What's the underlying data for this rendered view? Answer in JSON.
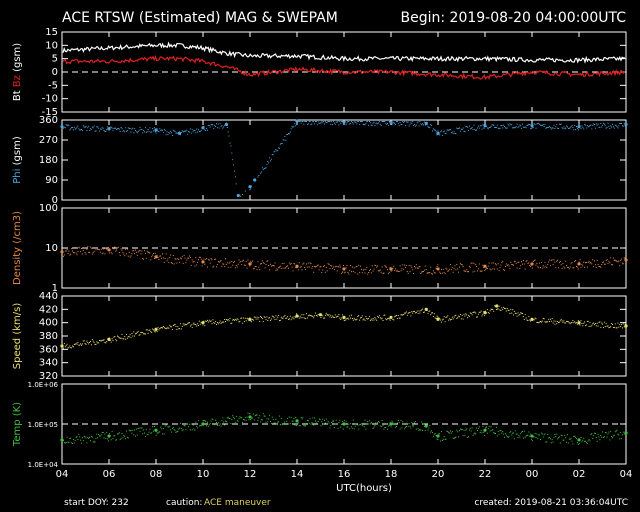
{
  "header": {
    "title": "ACE RTSW (Estimated) MAG & SWEPAM",
    "begin": "Begin: 2019-08-20 04:00:00UTC"
  },
  "footer": {
    "start_doy_label": "start DOY: 232",
    "caution_label": "caution:",
    "caution_value": "ACE maneuver",
    "created": "created: 2019-08-21 03:36:04UTC"
  },
  "colors": {
    "background": "#000000",
    "axes": "#ffffff",
    "bt": "#ffffff",
    "bz": "#e02020",
    "phi": "#4aa6e0",
    "density": "#e08a4a",
    "speed": "#e8e070",
    "temp": "#40c040"
  },
  "chart_data": [
    {
      "type": "line",
      "panel": "magnetic field",
      "ylabel_parts": [
        "Bt",
        "Bz",
        "(gsm)"
      ],
      "ylim": [
        -15,
        15
      ],
      "yticks": [
        "15",
        "10",
        "5",
        "0",
        "-5",
        "-10",
        "-15"
      ],
      "ytick_values": [
        15,
        10,
        5,
        0,
        -5,
        -10,
        -15
      ],
      "reference_line": 0,
      "x_hours": [
        4,
        6,
        8,
        9,
        10,
        11,
        12,
        14,
        16,
        18,
        20,
        22,
        24,
        26,
        28
      ],
      "series": [
        {
          "name": "Bt",
          "color": "white",
          "values": [
            8,
            9,
            10,
            10,
            9,
            7,
            6,
            6,
            5,
            5,
            5,
            5,
            4.5,
            4.5,
            5
          ]
        },
        {
          "name": "Bz",
          "color": "red",
          "values": [
            4,
            4,
            5,
            5,
            4,
            2,
            -1,
            1,
            0,
            0,
            -1,
            -2,
            0,
            -1,
            0
          ]
        }
      ]
    },
    {
      "type": "scatter",
      "panel": "phi",
      "ylabel_parts": [
        "Phi",
        "(gsm)"
      ],
      "ylim": [
        0,
        360
      ],
      "yticks": [
        "360",
        "270",
        "180",
        "90",
        "0"
      ],
      "ytick_values": [
        360,
        270,
        180,
        90,
        0
      ],
      "x_hours": [
        4,
        6,
        8,
        9,
        10,
        11,
        11.5,
        12,
        12.2,
        14,
        16,
        18,
        19.5,
        20,
        22,
        24,
        26,
        28
      ],
      "series": [
        {
          "name": "Phi",
          "color": "blue",
          "values": [
            330,
            320,
            315,
            300,
            325,
            340,
            20,
            60,
            90,
            355,
            350,
            350,
            345,
            300,
            335,
            335,
            330,
            340
          ]
        }
      ]
    },
    {
      "type": "scatter",
      "panel": "density",
      "ylabel_parts": [
        "Density",
        "(/cm3)"
      ],
      "yscale": "log",
      "ylim": [
        1,
        100
      ],
      "yticks": [
        "100",
        "10",
        "1"
      ],
      "ytick_values": [
        100,
        10,
        1
      ],
      "reference_line": 10,
      "x_hours": [
        4,
        6,
        8,
        10,
        12,
        14,
        16,
        18,
        20,
        22,
        24,
        26,
        28
      ],
      "series": [
        {
          "name": "Density",
          "color": "orange",
          "values": [
            8,
            9,
            6,
            4.5,
            4,
            3.5,
            3,
            3,
            3,
            3.5,
            4,
            4,
            5
          ]
        }
      ]
    },
    {
      "type": "scatter",
      "panel": "speed",
      "ylabel_parts": [
        "Speed",
        "(km/s)"
      ],
      "ylim": [
        320,
        440
      ],
      "yticks": [
        "440",
        "420",
        "400",
        "380",
        "360",
        "340",
        "320"
      ],
      "ytick_values": [
        440,
        420,
        400,
        380,
        360,
        340,
        320
      ],
      "x_hours": [
        4,
        6,
        8,
        10,
        12,
        14,
        15,
        16,
        18,
        19.5,
        20,
        22,
        22.5,
        24,
        26,
        28
      ],
      "series": [
        {
          "name": "Speed",
          "color": "yellow",
          "values": [
            365,
            375,
            390,
            400,
            405,
            410,
            412,
            408,
            408,
            420,
            405,
            415,
            425,
            405,
            400,
            395
          ]
        }
      ]
    },
    {
      "type": "scatter",
      "panel": "temperature",
      "ylabel_parts": [
        "Temp",
        "(K)"
      ],
      "yscale": "log",
      "ylim": [
        10000,
        1000000
      ],
      "yticks": [
        "1.0E+06",
        "1.0E+05",
        "1.0E+04"
      ],
      "ytick_values": [
        1000000,
        100000,
        10000
      ],
      "reference_line": 100000,
      "x_hours": [
        4,
        6,
        8,
        10,
        12,
        14,
        16,
        18,
        19.5,
        20,
        22,
        24,
        26,
        28
      ],
      "series": [
        {
          "name": "Temp",
          "color": "green",
          "values": [
            40000,
            50000,
            70000,
            100000,
            150000,
            120000,
            100000,
            100000,
            90000,
            50000,
            70000,
            50000,
            40000,
            60000
          ]
        }
      ]
    }
  ],
  "x_axis": {
    "label": "UTC(hours)",
    "xlim": [
      4,
      28
    ],
    "ticks": [
      "04",
      "06",
      "08",
      "10",
      "12",
      "14",
      "16",
      "18",
      "20",
      "22",
      "00",
      "02",
      "04"
    ],
    "tick_values": [
      4,
      6,
      8,
      10,
      12,
      14,
      16,
      18,
      20,
      22,
      24,
      26,
      28
    ]
  }
}
